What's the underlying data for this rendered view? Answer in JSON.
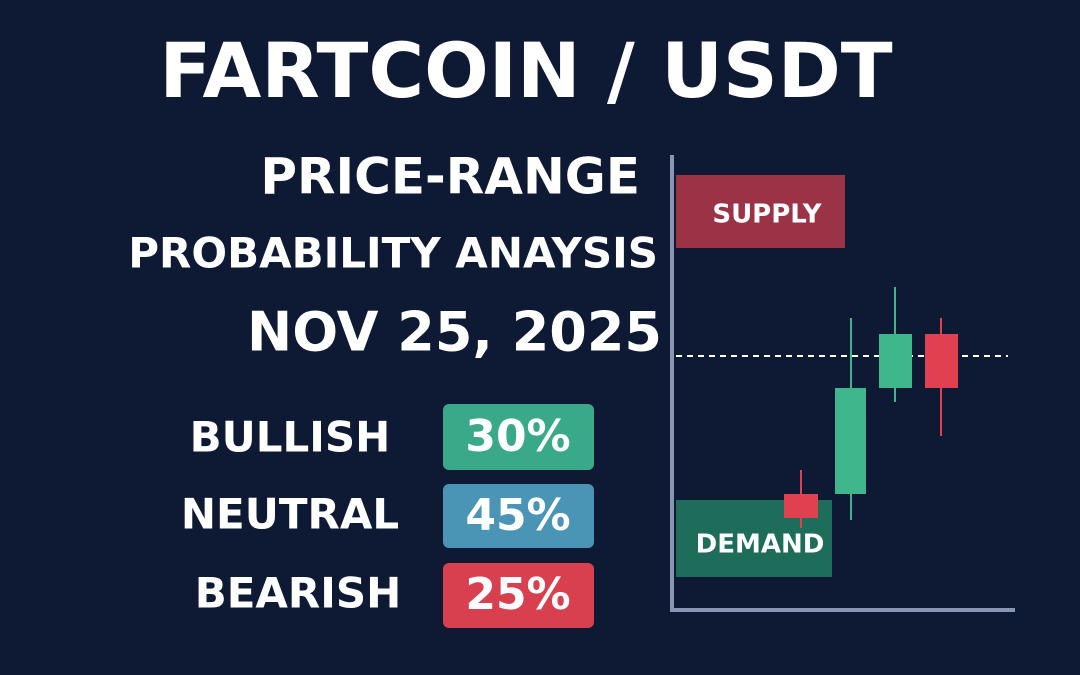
{
  "header": {
    "title": "FARTCOIN / USDT",
    "subtitle_1": "PRICE-RANGE",
    "subtitle_2": "PROBABILITY ANAYSIS",
    "date": "NOV 25, 2025"
  },
  "probabilities": [
    {
      "label": "BULLISH",
      "value": "30%"
    },
    {
      "label": "NEUTRAL",
      "value": "45%"
    },
    {
      "label": "BEARISH",
      "value": "25%"
    }
  ],
  "chart": {
    "supply_label": "SUPPLY",
    "demand_label": "DEMAND"
  }
}
